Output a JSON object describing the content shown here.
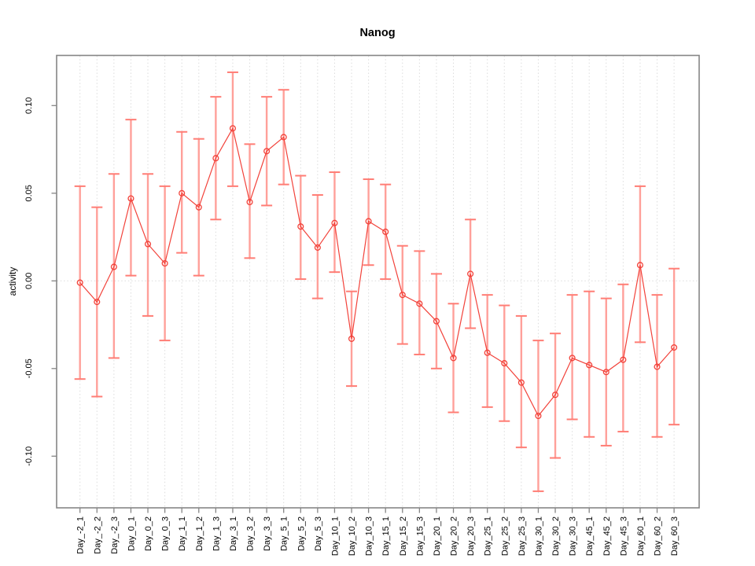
{
  "window": {
    "background": "#ffffff"
  },
  "chart_data": {
    "type": "line",
    "title": "Nanog",
    "xlabel": "",
    "ylabel": "activity",
    "legend": "none",
    "grid": "dotted vertical gridline at each category; dotted horizontal line at y=0",
    "marker": "open-circle",
    "error_bars": true,
    "categories": [
      "Day_-2_1",
      "Day_-2_2",
      "Day_-2_3",
      "Day_0_1",
      "Day_0_2",
      "Day_0_3",
      "Day_1_1",
      "Day_1_2",
      "Day_1_3",
      "Day_3_1",
      "Day_3_2",
      "Day_3_3",
      "Day_5_1",
      "Day_5_2",
      "Day_5_3",
      "Day_10_1",
      "Day_10_2",
      "Day_10_3",
      "Day_15_1",
      "Day_15_2",
      "Day_15_3",
      "Day_20_1",
      "Day_20_2",
      "Day_20_3",
      "Day_25_1",
      "Day_25_2",
      "Day_25_3",
      "Day_30_1",
      "Day_30_2",
      "Day_30_3",
      "Day_45_1",
      "Day_45_2",
      "Day_45_3",
      "Day_60_1",
      "Day_60_2",
      "Day_60_3"
    ],
    "series": [
      {
        "name": "activity",
        "values": [
          -0.001,
          -0.012,
          0.008,
          0.047,
          0.021,
          0.01,
          0.05,
          0.042,
          0.07,
          0.087,
          0.045,
          0.074,
          0.082,
          0.031,
          0.019,
          0.033,
          -0.033,
          0.034,
          0.028,
          -0.008,
          -0.013,
          -0.023,
          -0.044,
          0.004,
          -0.041,
          -0.047,
          -0.058,
          -0.077,
          -0.065,
          -0.044,
          -0.048,
          -0.052,
          -0.045,
          0.009,
          -0.049,
          -0.038
        ],
        "error_high": [
          0.054,
          0.042,
          0.061,
          0.092,
          0.061,
          0.054,
          0.085,
          0.081,
          0.105,
          0.119,
          0.078,
          0.105,
          0.109,
          0.06,
          0.049,
          0.062,
          -0.006,
          0.058,
          0.055,
          0.02,
          0.017,
          0.004,
          -0.013,
          0.035,
          -0.008,
          -0.014,
          -0.02,
          -0.034,
          -0.03,
          -0.008,
          -0.006,
          -0.01,
          -0.002,
          0.054,
          -0.008,
          0.007
        ],
        "error_low": [
          -0.056,
          -0.066,
          -0.044,
          0.003,
          -0.02,
          -0.034,
          0.016,
          0.003,
          0.035,
          0.054,
          0.013,
          0.043,
          0.055,
          0.001,
          -0.01,
          0.005,
          -0.06,
          0.009,
          0.001,
          -0.036,
          -0.042,
          -0.05,
          -0.075,
          -0.027,
          -0.072,
          -0.08,
          -0.095,
          -0.12,
          -0.101,
          -0.079,
          -0.089,
          -0.094,
          -0.086,
          -0.035,
          -0.089,
          -0.082
        ]
      }
    ],
    "yticks": {
      "labels": [
        "0.10",
        "0.05",
        "0.00",
        "-0.05",
        "-0.10"
      ],
      "values": [
        0.1,
        0.05,
        0.0,
        -0.05,
        -0.1
      ]
    },
    "ylim": [
      -0.13,
      0.129
    ],
    "colors": {
      "series_line": "#f2423a",
      "marker": "#f2423a",
      "error_bar": "#ffa09a",
      "error_cap": "#ff7d75",
      "gridline": "#dcdcdc",
      "axis": "#858585",
      "text": "#000000",
      "background": "#ffffff"
    }
  }
}
